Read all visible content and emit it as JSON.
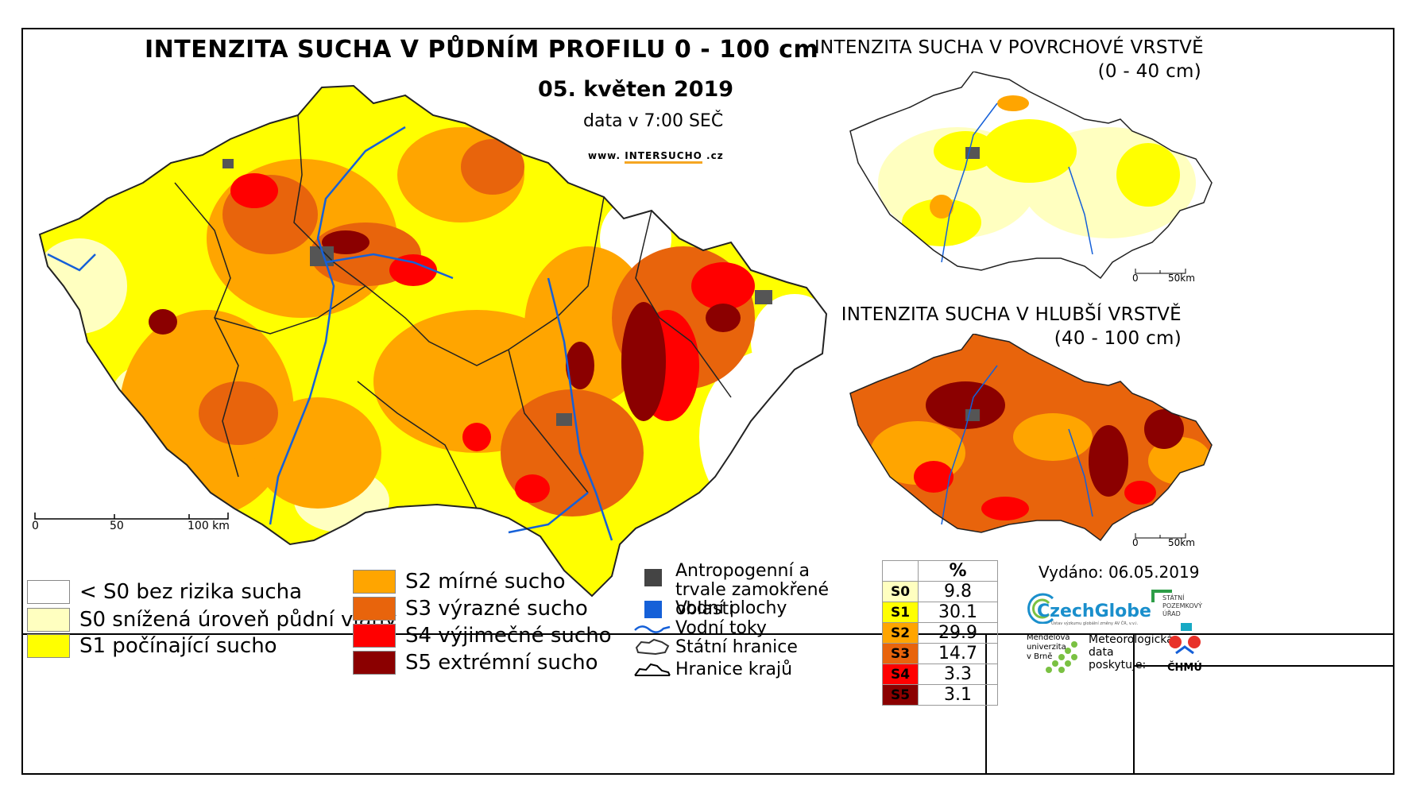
{
  "main_map": {
    "title": "INTENZITA SUCHA V PŮDNÍM PROFILU 0 - 100 cm",
    "date": "05. květen 2019",
    "time": "data v 7:00 SEČ",
    "url_prefix": "www.",
    "url_brand": "INTERSUCHO",
    "url_suffix": ".cz",
    "scale_labels": [
      "0",
      "50",
      "100 km"
    ]
  },
  "inset_top": {
    "title": "INTENZITA SUCHA V POVRCHOVÉ VRSTVĚ",
    "subtitle": "(0 - 40 cm)",
    "scale_labels": [
      "0",
      "50km"
    ]
  },
  "inset_bottom": {
    "title": "INTENZITA SUCHA V HLUBŠÍ VRSTVĚ",
    "subtitle": "(40 - 100 cm)",
    "scale_labels": [
      "0",
      "50km"
    ]
  },
  "legend": {
    "classes": [
      {
        "label": "< S0 bez rizika sucha",
        "color": "#ffffff"
      },
      {
        "label": "S0 snížená úroveň půdní vláhy",
        "color": "#ffffc0"
      },
      {
        "label": "S1 počínající sucho",
        "color": "#ffff00"
      },
      {
        "label": "S2 mírné sucho",
        "color": "#ffa500"
      },
      {
        "label": "S3 výrazné sucho",
        "color": "#e8640c"
      },
      {
        "label": "S4 výjimečné sucho",
        "color": "#ff0000"
      },
      {
        "label": "S5 extrémní sucho",
        "color": "#8b0000"
      }
    ],
    "symbols": [
      {
        "label": "Antropogenní a trvale zamokřené oblasti",
        "icon": "dark-square-icon",
        "color": "#444444"
      },
      {
        "label": "Vodní plochy",
        "icon": "blue-square-icon",
        "color": "#1560d8"
      },
      {
        "label": "Vodní toky",
        "icon": "river-line-icon",
        "color": "#1560d8"
      },
      {
        "label": "Státní hranice",
        "icon": "state-border-icon",
        "color": "#000000"
      },
      {
        "label": "Hranice krajů",
        "icon": "region-border-icon",
        "color": "#000000"
      }
    ]
  },
  "percent_table": {
    "header": "%",
    "rows": [
      {
        "cls": "S0",
        "value": "9.8",
        "color": "#ffffc0"
      },
      {
        "cls": "S1",
        "value": "30.1",
        "color": "#ffff00"
      },
      {
        "cls": "S2",
        "value": "29.9",
        "color": "#ffa500"
      },
      {
        "cls": "S3",
        "value": "14.7",
        "color": "#e8640c"
      },
      {
        "cls": "S4",
        "value": "3.3",
        "color": "#ff0000"
      },
      {
        "cls": "S5",
        "value": "3.1",
        "color": "#8b0000"
      }
    ]
  },
  "footer": {
    "issued": "Vydáno: 06.05.2019",
    "czechglobe": "CzechGlobe",
    "czechglobe_sub": "Ústav výzkumu globální změny AV ČR, v.v.i.",
    "spu": [
      "STÁTNÍ",
      "POZEMKOVÝ",
      "ÚŘAD"
    ],
    "mendel": [
      "Mendelova",
      "univerzita",
      "v Brně"
    ],
    "met": [
      "Meteorologická",
      "data",
      "poskytuje:"
    ],
    "chmu": "ČHMÚ"
  }
}
